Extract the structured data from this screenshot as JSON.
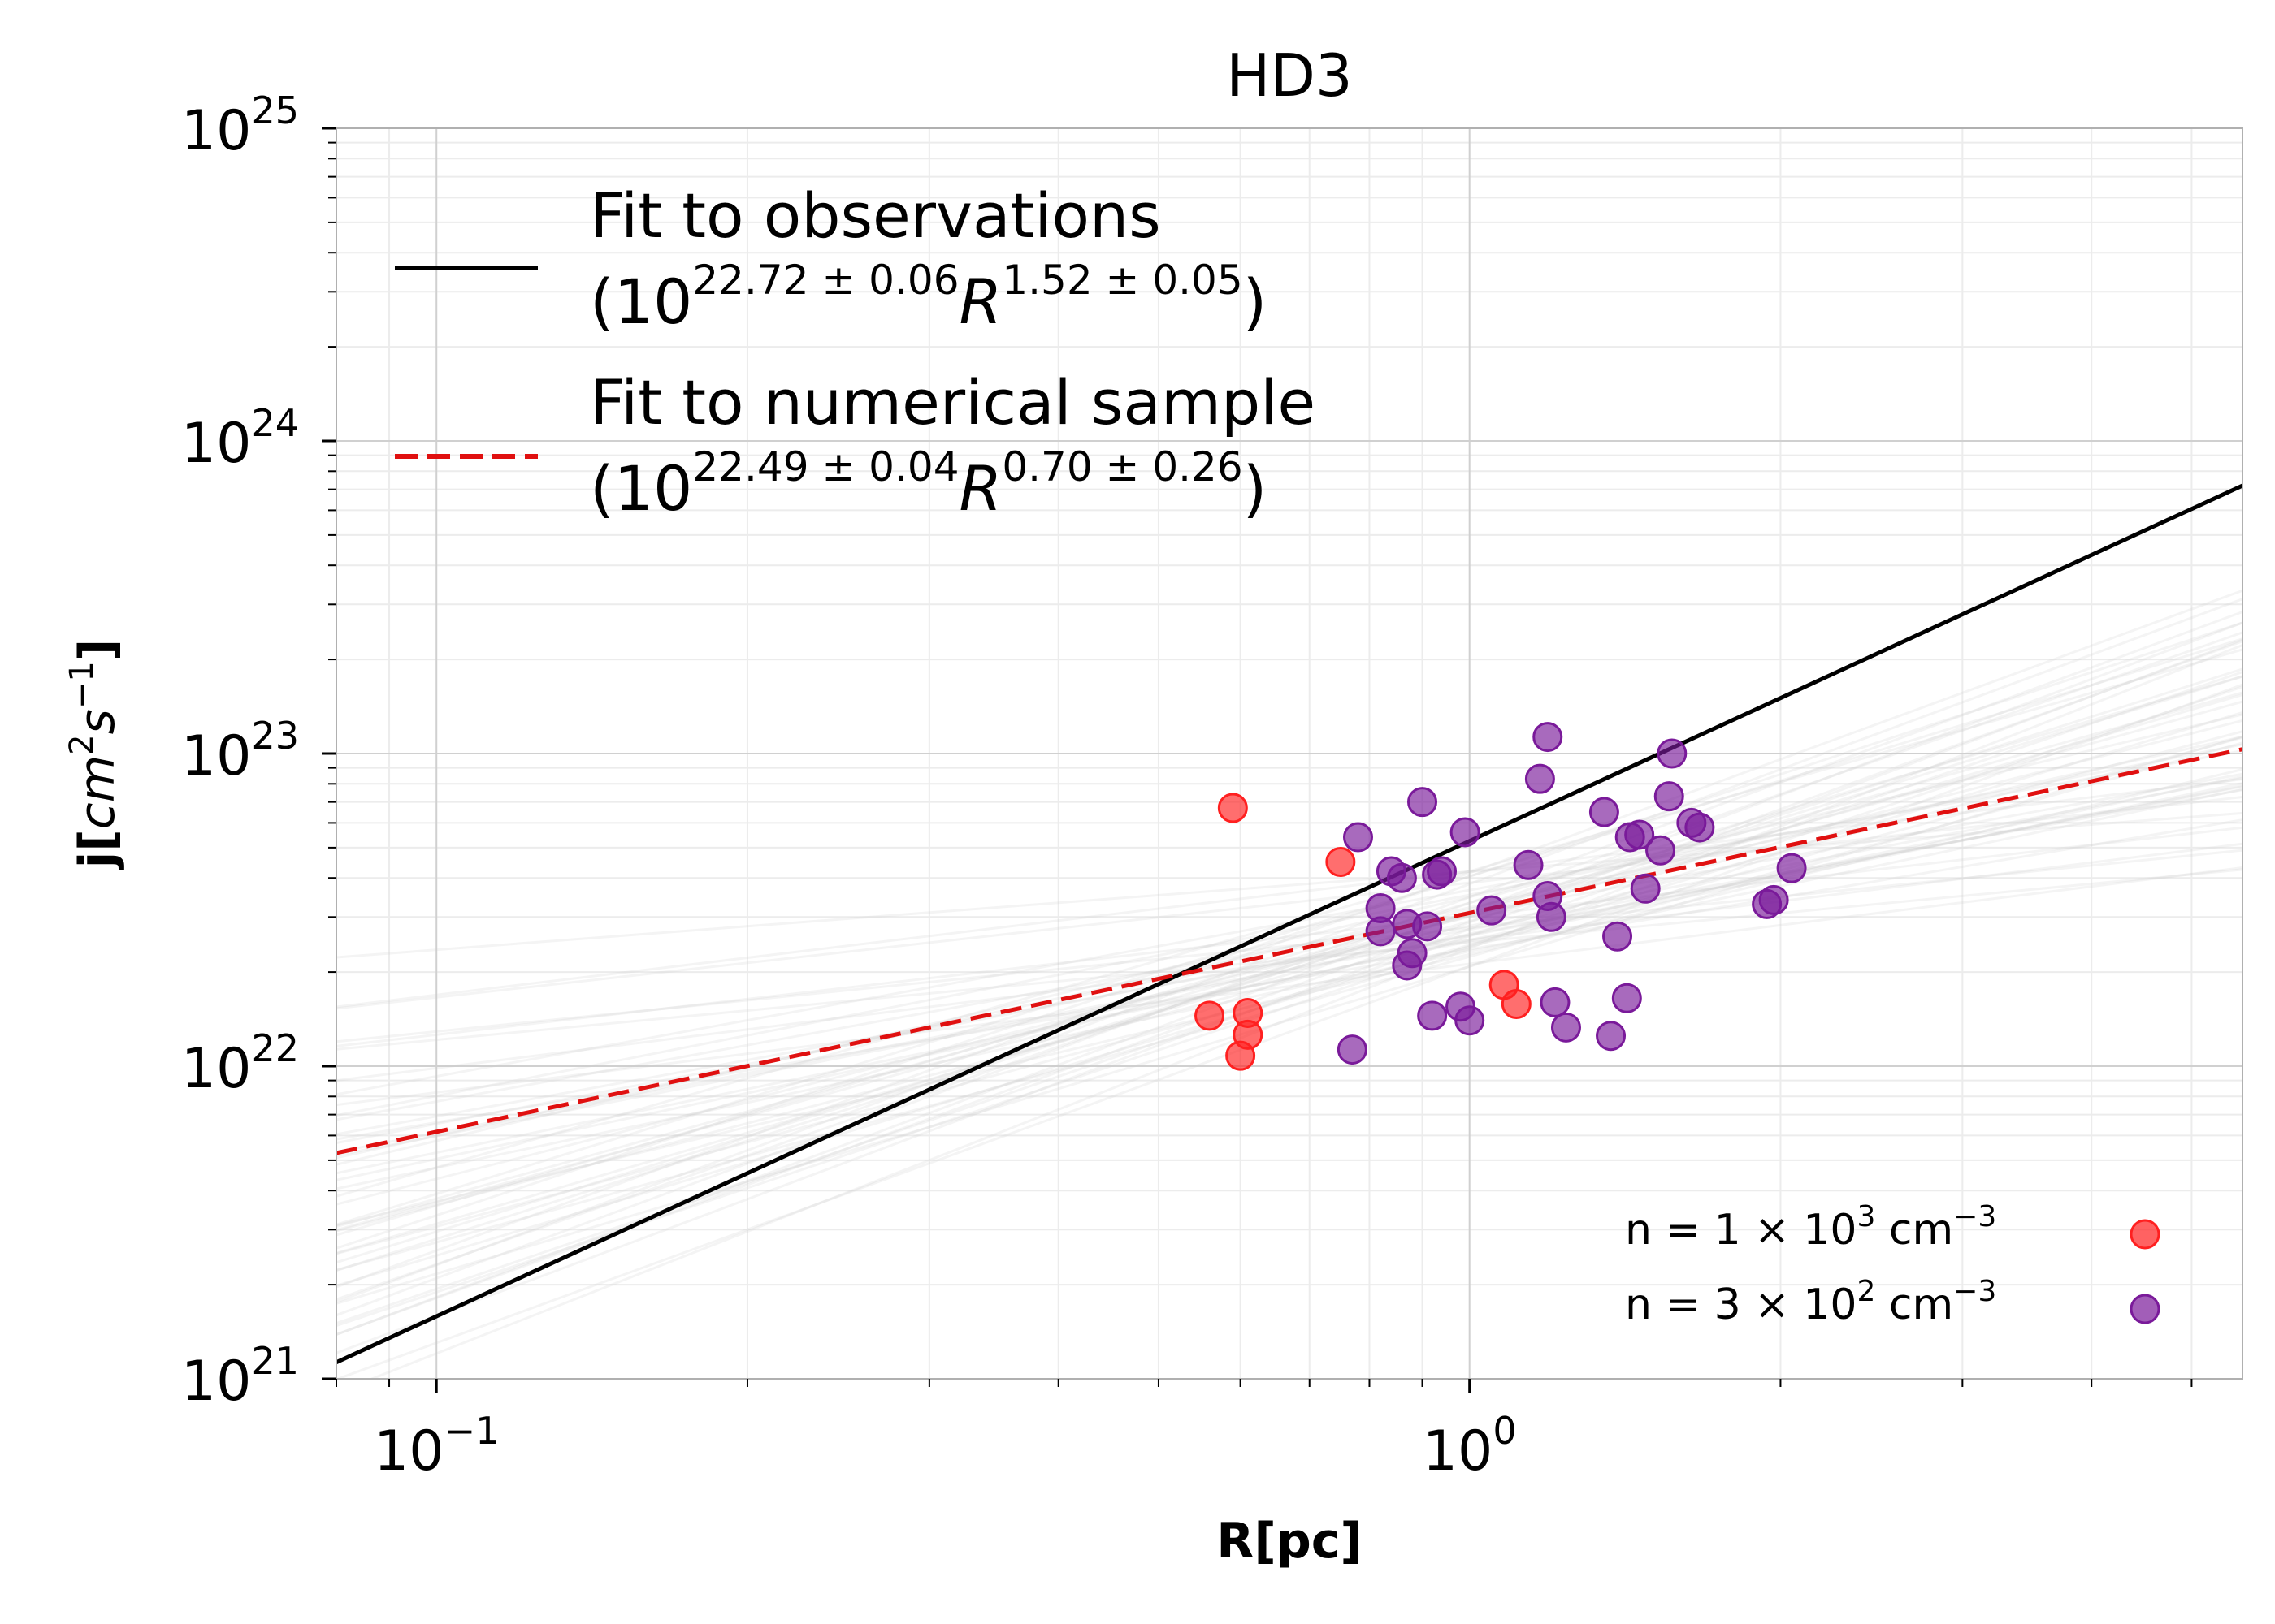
{
  "chart_data": {
    "type": "scatter",
    "title": "HD3",
    "xlabel": "R[pc]",
    "ylabel_parts": {
      "base": "j[",
      "cm": "cm",
      "cm_exp": "2",
      "s": "s",
      "s_exp": "−1",
      "close": "]"
    },
    "xscale": "log",
    "yscale": "log",
    "xlim": [
      0.08,
      5.6
    ],
    "ylim": [
      1e+21,
      1e+25
    ],
    "x_ticks": [
      {
        "value": 0.1,
        "base": "10",
        "exp": "−1"
      },
      {
        "value": 1,
        "base": "10",
        "exp": "0"
      }
    ],
    "y_ticks": [
      {
        "value": 1e+21,
        "base": "10",
        "exp": "21"
      },
      {
        "value": 1e+22,
        "base": "10",
        "exp": "22"
      },
      {
        "value": 1e+23,
        "base": "10",
        "exp": "23"
      },
      {
        "value": 1e+24,
        "base": "10",
        "exp": "24"
      },
      {
        "value": 1e+25,
        "base": "10",
        "exp": "25"
      }
    ],
    "grid": true,
    "fits": [
      {
        "name": "Fit to observations",
        "color": "#000000",
        "dash": "solid",
        "log_amplitude": 22.72,
        "slope": 1.52,
        "formula": {
          "open": "(10",
          "exp1": "22.72 ± 0.06",
          "var": "R",
          "exp2": "1.52 ± 0.05",
          "close": ")"
        }
      },
      {
        "name": "Fit to numerical sample",
        "color": "#e01010",
        "dash": "dashed",
        "log_amplitude": 22.49,
        "slope": 0.7,
        "formula": {
          "open": "(10",
          "exp1": "22.49 ± 0.04",
          "var": "R",
          "exp2": "0.70 ± 0.26",
          "close": ")"
        }
      }
    ],
    "series": [
      {
        "name": "n =1×10³ cm⁻³",
        "label_parts": {
          "pre": "n  = 1 × 10",
          "exp1": "3",
          "mid": " cm",
          "exp2": "−3"
        },
        "color": "#ff2020",
        "points": [
          [
            0.59,
            6.7e+22
          ],
          [
            0.75,
            4.5e+22
          ],
          [
            0.56,
            1.45e+22
          ],
          [
            0.61,
            1.48e+22
          ],
          [
            0.61,
            1.26e+22
          ],
          [
            0.6,
            1.08e+22
          ],
          [
            1.08,
            1.82e+22
          ],
          [
            1.11,
            1.58e+22
          ]
        ]
      },
      {
        "name": "n =3×10² cm⁻³",
        "label_parts": {
          "pre": "n  = 3 × 10",
          "exp1": "2",
          "mid": " cm",
          "exp2": "−3"
        },
        "color": "#7a1a9a",
        "points": [
          [
            1.19,
            1.13e+23
          ],
          [
            1.57,
            1e+23
          ],
          [
            1.17,
            8.3e+22
          ],
          [
            0.9,
            7e+22
          ],
          [
            1.56,
            7.3e+22
          ],
          [
            1.35,
            6.5e+22
          ],
          [
            0.99,
            5.6e+22
          ],
          [
            1.64,
            6e+22
          ],
          [
            1.67,
            5.8e+22
          ],
          [
            0.78,
            5.4e+22
          ],
          [
            1.43,
            5.4e+22
          ],
          [
            1.46,
            5.5e+22
          ],
          [
            1.53,
            4.9e+22
          ],
          [
            1.14,
            4.4e+22
          ],
          [
            0.94,
            4.2e+22
          ],
          [
            0.84,
            4.2e+22
          ],
          [
            0.86,
            4e+22
          ],
          [
            0.93,
            4.1e+22
          ],
          [
            2.05,
            4.3e+22
          ],
          [
            1.19,
            3.5e+22
          ],
          [
            1.48,
            3.7e+22
          ],
          [
            0.82,
            3.2e+22
          ],
          [
            1.05,
            3.15e+22
          ],
          [
            1.97,
            3.4e+22
          ],
          [
            1.94,
            3.3e+22
          ],
          [
            1.2,
            3e+22
          ],
          [
            0.91,
            2.8e+22
          ],
          [
            0.87,
            2.85e+22
          ],
          [
            0.82,
            2.7e+22
          ],
          [
            1.39,
            2.6e+22
          ],
          [
            0.88,
            2.3e+22
          ],
          [
            0.87,
            2.1e+22
          ],
          [
            0.92,
            1.45e+22
          ],
          [
            0.98,
            1.55e+22
          ],
          [
            1.0,
            1.4e+22
          ],
          [
            1.21,
            1.6e+22
          ],
          [
            1.42,
            1.65e+22
          ],
          [
            1.24,
            1.33e+22
          ],
          [
            1.37,
            1.25e+22
          ],
          [
            0.77,
            1.13e+22
          ]
        ]
      }
    ],
    "background_lines": {
      "count": 48,
      "color": "#cccccc",
      "description_only": false
    }
  }
}
